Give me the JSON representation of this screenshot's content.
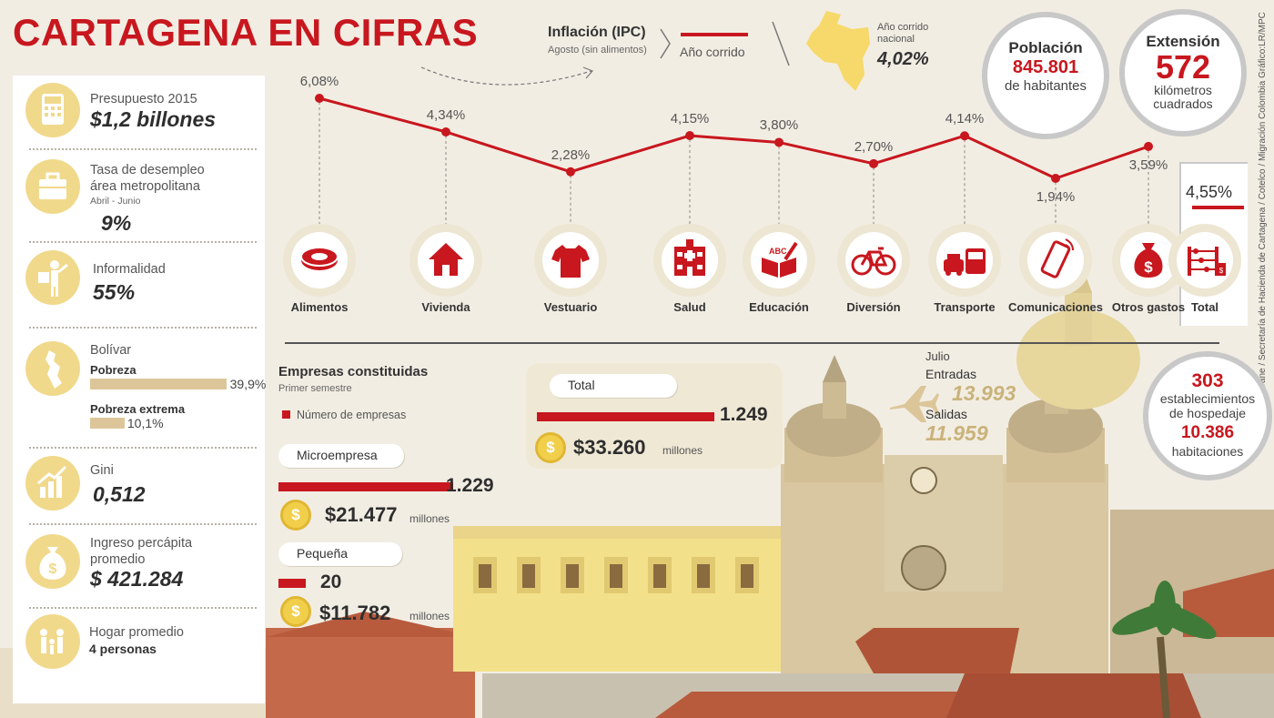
{
  "title": "CARTAGENA EN CIFRAS",
  "left_panel": {
    "budget": {
      "label": "Presupuesto 2015",
      "value": "$1,2 billones"
    },
    "unemployment": {
      "label_line1": "Tasa de desempleo",
      "label_line2": "área metropolitana",
      "period": "Abril - Junio",
      "value": "9%"
    },
    "informality": {
      "label": "Informalidad",
      "value": "55%"
    },
    "bolivar": {
      "label": "Bolívar",
      "poverty_label": "Pobreza",
      "poverty_value": "39,9%",
      "poverty_pct": 39.9,
      "extreme_label": "Pobreza extrema",
      "extreme_value": "10,1%",
      "extreme_pct": 10.1
    },
    "gini": {
      "label": "Gini",
      "value": "0,512"
    },
    "income": {
      "label_line1": "Ingreso percápita",
      "label_line2": "promedio",
      "value": "$ 421.284"
    },
    "household": {
      "label": "Hogar promedio",
      "value": "4 personas"
    }
  },
  "inflation": {
    "title": "Inflación (IPC)",
    "subtitle": "Agosto (sin alimentos)",
    "legend_label": "Año corrido",
    "national_label": "Año corrido nacional",
    "national_value": "4,02%"
  },
  "chart_data": {
    "type": "line",
    "categories": [
      "Alimentos",
      "Vivienda",
      "Vestuario",
      "Salud",
      "Educación",
      "Diversión",
      "Transporte",
      "Comunicaciones",
      "Otros gastos"
    ],
    "values": [
      6.08,
      4.34,
      2.28,
      4.15,
      3.8,
      2.7,
      4.14,
      1.94,
      3.59
    ],
    "value_labels": [
      "6,08%",
      "4,34%",
      "2,28%",
      "4,15%",
      "3,80%",
      "2,70%",
      "4,14%",
      "1,94%",
      "3,59%"
    ],
    "icons": [
      "food-icon",
      "house-icon",
      "shirt-icon",
      "hospital-icon",
      "education-icon",
      "bicycle-icon",
      "transport-icon",
      "phone-icon",
      "money-bag-icon"
    ],
    "total_label": "Total",
    "total_value": "4,55%",
    "color": "#c8171e"
  },
  "population": {
    "title": "Población",
    "value": "845.801",
    "unit": "de habitantes"
  },
  "extension": {
    "title": "Extensión",
    "value": "572",
    "unit_line1": "kilómetros",
    "unit_line2": "cuadrados"
  },
  "credits": "Fuente: Dane / Secretaría de Hacienda de Cartagena / Cotelco / Migración Colombia  Gráfico:LR/MPC",
  "companies": {
    "title": "Empresas constituidas",
    "subtitle": "Primer semestre",
    "legend_label": "Número de empresas",
    "total": {
      "label": "Total",
      "count": "1.249",
      "count_value": 1249,
      "money": "$33.260",
      "unit": "millones"
    },
    "micro": {
      "label": "Microempresa",
      "count": "1.229",
      "count_value": 1229,
      "money": "$21.477",
      "unit": "millones"
    },
    "small": {
      "label": "Pequeña",
      "count": "20",
      "count_value": 20,
      "money": "$11.782",
      "unit": "millones"
    },
    "coin_symbol": "$"
  },
  "arrivals": {
    "month": "Julio",
    "in_label": "Entradas",
    "in_value": "13.993",
    "out_label": "Salidas",
    "out_value": "11.959"
  },
  "hotels": {
    "count": "303",
    "count_label_1": "establecimientos",
    "count_label_2": "de hospedaje",
    "rooms": "10.386",
    "rooms_label": "habitaciones"
  },
  "colors": {
    "accent": "#c8171e",
    "icon_bg": "#f1d98c",
    "coin": "#f2cf4a",
    "beige": "#dcc699"
  }
}
